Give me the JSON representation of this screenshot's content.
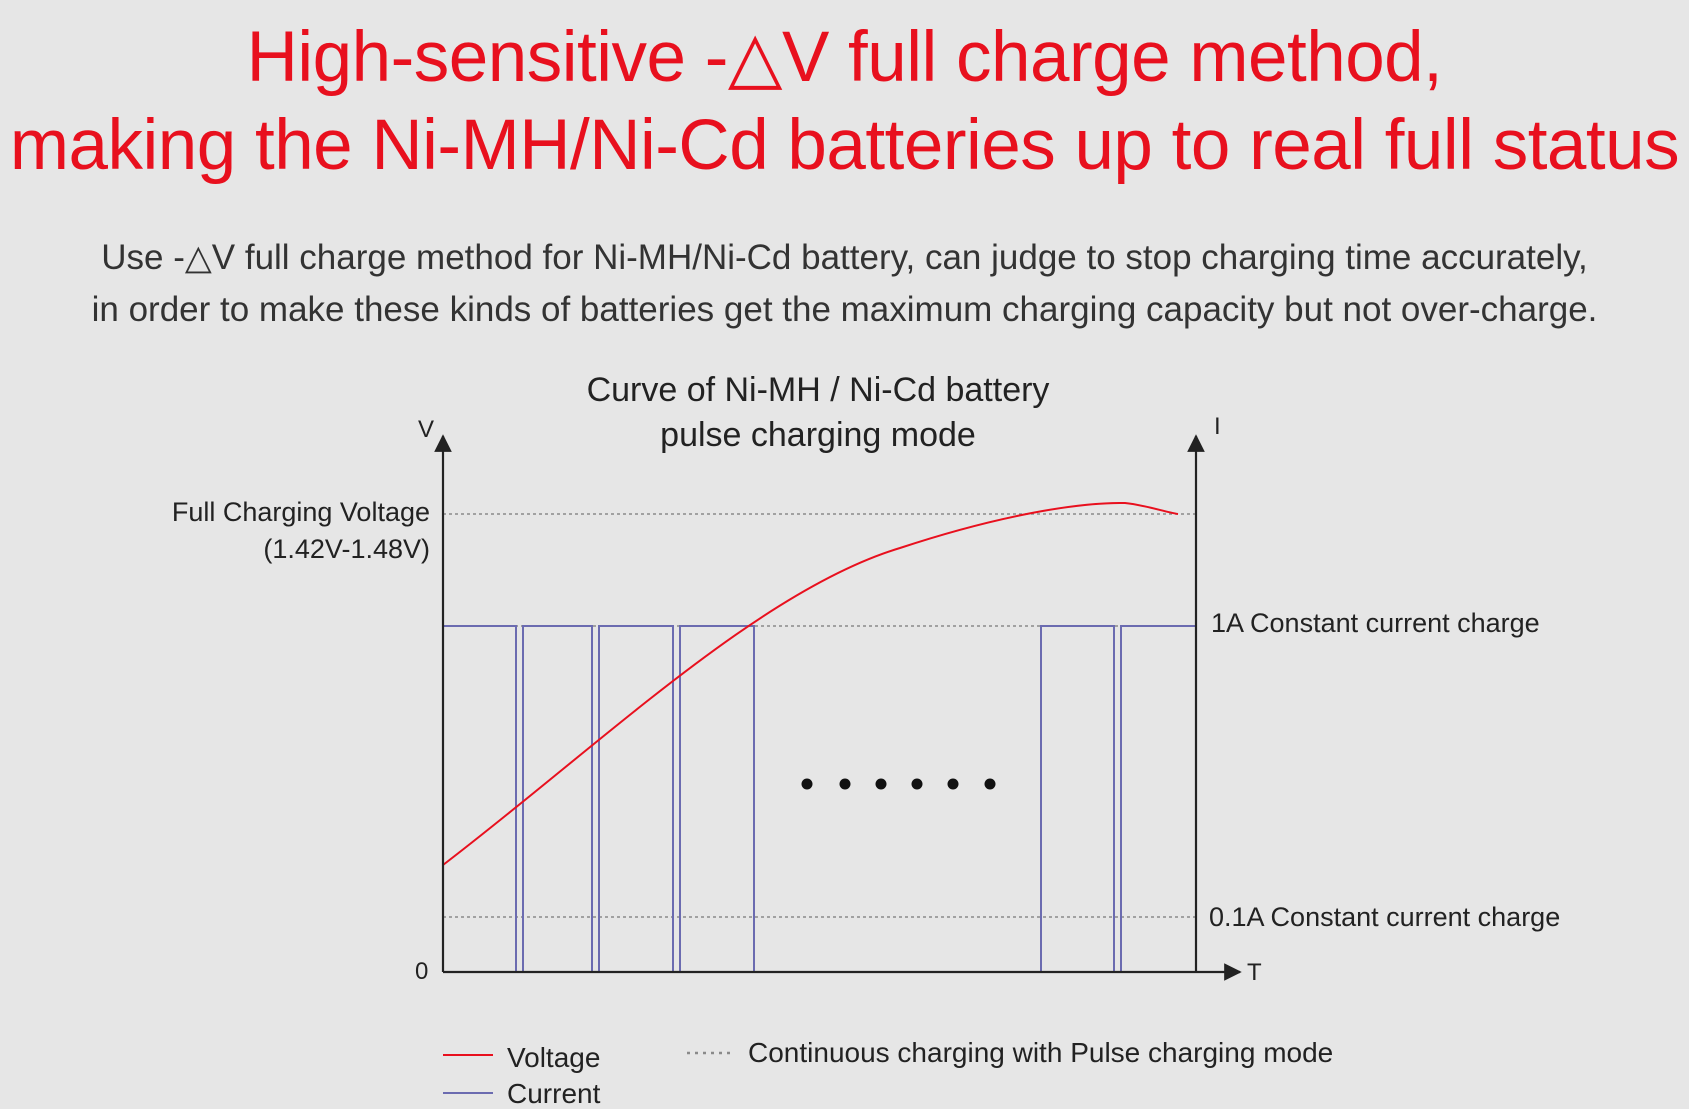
{
  "headline": {
    "line1": "High-sensitive -△V full charge method,",
    "line2": "making the Ni-MH/Ni-Cd batteries up to real full status"
  },
  "description": {
    "line1": "Use -△V full charge method for Ni-MH/Ni-Cd battery, can judge to stop charging time accurately,",
    "line2": "in order to make these kinds of batteries get the maximum charging capacity but not over-charge."
  },
  "chart": {
    "title_line1": "Curve of Ni-MH / Ni-Cd battery",
    "title_line2": "pulse charging mode",
    "left_axis_label": "V",
    "right_axis_label": "I",
    "x_axis_label": "T",
    "origin_label": "0",
    "full_voltage_label_line1": "Full Charging Voltage",
    "full_voltage_label_line2": "(1.42V-1.48V)",
    "high_current_label": "1A Constant current charge",
    "low_current_label": "0.1A Constant current charge",
    "ellipsis": "• • • • • •",
    "legend": {
      "voltage": "Voltage",
      "current": "Current",
      "dotted": "Continuous charging with Pulse charging mode"
    },
    "colors": {
      "voltage": "#e8101e",
      "current": "#6b6bb0",
      "axis": "#222222",
      "reference": "#8a8a8a"
    }
  }
}
